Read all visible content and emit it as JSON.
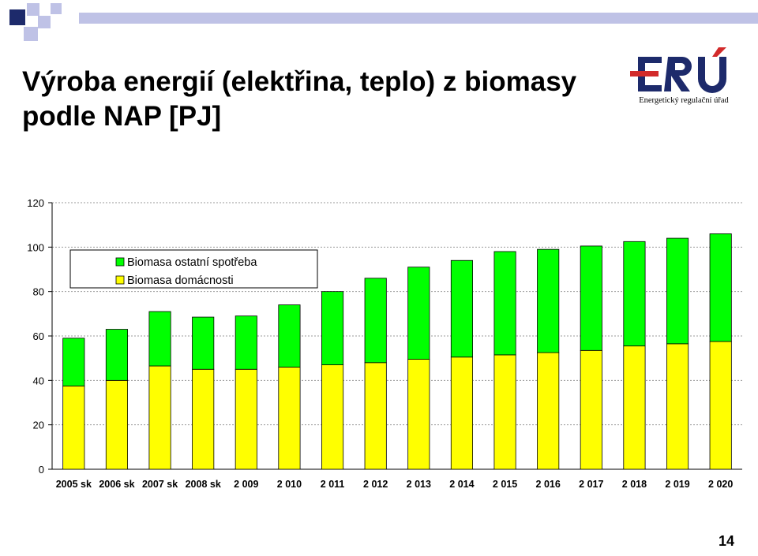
{
  "header": {
    "title_line1": "Výroba energií (elektřina, teplo) z biomasy",
    "title_line2": "podle NAP [PJ]"
  },
  "logo": {
    "text": "ERÚ",
    "subtitle": "Energetický regulační úřad",
    "colors": {
      "navy": "#1d2a6b",
      "red": "#d22a2a"
    }
  },
  "decor": {
    "square_colors": [
      "#1d2a6b",
      "#bfc2e6"
    ],
    "line_color": "#bfc2e6"
  },
  "page_number": "14",
  "chart_data": {
    "type": "bar",
    "stacked": true,
    "categories": [
      "2005 sk",
      "2006 sk",
      "2007 sk",
      "2008 sk",
      "2 009",
      "2 010",
      "2 011",
      "2 012",
      "2 013",
      "2 014",
      "2 015",
      "2 016",
      "2 017",
      "2 018",
      "2 019",
      "2 020"
    ],
    "series": [
      {
        "name": "Biomasa domácnosti",
        "color": "#ffff00",
        "values": [
          37.5,
          40.0,
          46.5,
          45.0,
          45.0,
          46.0,
          47.0,
          48.0,
          49.5,
          50.5,
          51.5,
          52.5,
          53.5,
          55.5,
          56.5,
          57.5
        ]
      },
      {
        "name": "Biomasa ostatní spotřeba",
        "color": "#00ff00",
        "values": [
          21.5,
          23.0,
          24.5,
          23.5,
          24.0,
          28.0,
          33.0,
          38.0,
          41.5,
          43.5,
          46.5,
          46.5,
          47.0,
          47.0,
          47.5,
          48.5
        ]
      }
    ],
    "ylim": [
      0,
      120
    ],
    "yticks": [
      0,
      20,
      40,
      60,
      80,
      100,
      120
    ],
    "grid": true,
    "legend": "top-left"
  }
}
